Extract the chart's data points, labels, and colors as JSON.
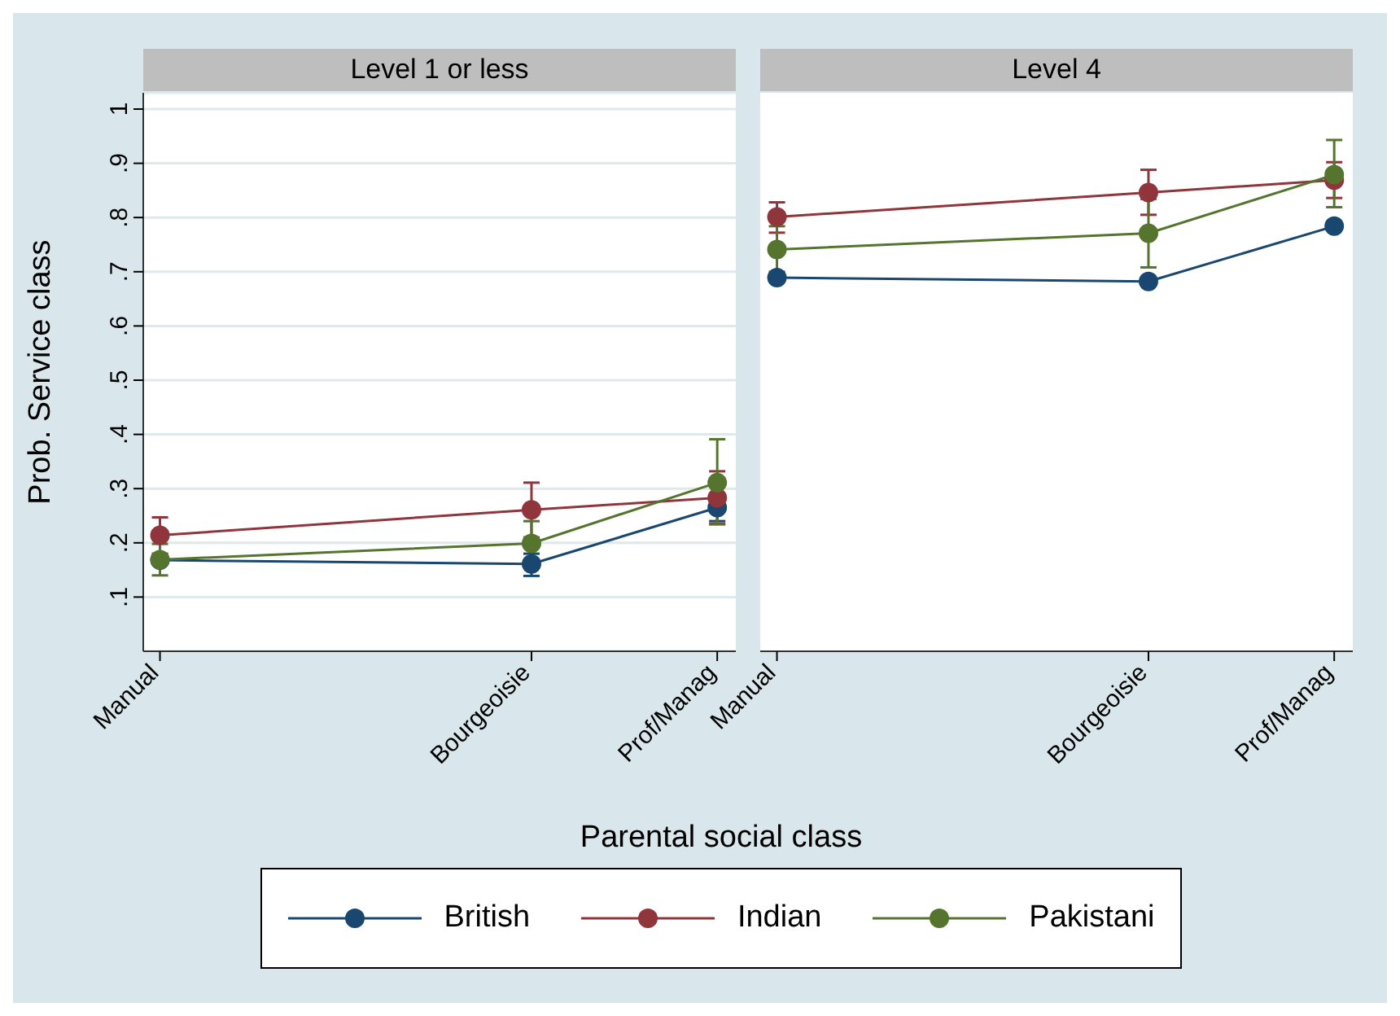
{
  "chart_data": [
    {
      "type": "line",
      "title": "Level 1 or less",
      "xlabel": "Parental social class",
      "ylabel": "Prob. Service class",
      "legend": "bottom",
      "grid": "y",
      "marker": "circle",
      "line_style": "solid",
      "categories": [
        "Manual",
        null,
        "Bourgeoisie",
        "Prof/Manag"
      ],
      "ylim": [
        0,
        1.03
      ],
      "yticks": [
        {
          "value": 0.1,
          "label": ".1"
        },
        {
          "value": 0.2,
          "label": ".2"
        },
        {
          "value": 0.3,
          "label": ".3"
        },
        {
          "value": 0.4,
          "label": ".4"
        },
        {
          "value": 0.5,
          "label": ".5"
        },
        {
          "value": 0.6,
          "label": ".6"
        },
        {
          "value": 0.7,
          "label": ".7"
        },
        {
          "value": 0.8,
          "label": ".8"
        },
        {
          "value": 0.9,
          "label": ".9"
        },
        1
      ],
      "series": [
        {
          "name": "British",
          "color": "#1a476f",
          "values": [
            0.168,
            null,
            0.161,
            0.265
          ],
          "errors": [
            null,
            null,
            [
              0.139,
              0.18
            ],
            [
              0.24,
              0.29
            ]
          ]
        },
        {
          "name": "Indian",
          "color": "#90353b",
          "values": [
            0.214,
            null,
            0.261,
            0.283
          ],
          "errors": [
            [
              0.18,
              0.247
            ],
            null,
            [
              0.21,
              0.311
            ],
            [
              0.235,
              0.332
            ]
          ]
        },
        {
          "name": "Pakistani",
          "color": "#55752f",
          "values": [
            0.169,
            null,
            0.199,
            0.311
          ],
          "errors": [
            [
              0.14,
              0.198
            ],
            null,
            [
              0.199,
              0.24
            ],
            [
              0.234,
              0.391
            ]
          ]
        }
      ]
    },
    {
      "type": "line",
      "title": "Level 4",
      "marker": "circle",
      "line_style": "solid",
      "tick_labels": "x",
      "categories": [
        "Manual",
        null,
        "Bourgeoisie",
        "Prof/Manag"
      ],
      "ylim": [
        0,
        1.03
      ],
      "series": [
        {
          "color": "#1a476f",
          "values": [
            0.689,
            null,
            0.682,
            0.784
          ]
        },
        {
          "color": "#90353b",
          "values": [
            0.801,
            null,
            0.846,
            0.869
          ],
          "errors": [
            [
              0.772,
              0.828
            ],
            null,
            [
              0.805,
              0.888
            ],
            [
              0.836,
              0.902
            ]
          ]
        },
        {
          "color": "#55752f",
          "values": [
            0.741,
            null,
            0.771,
            0.879
          ],
          "errors": [
            [
              0.7,
              0.784
            ],
            null,
            [
              0.708,
              0.834
            ],
            [
              0.819,
              0.943
            ]
          ]
        }
      ]
    }
  ]
}
